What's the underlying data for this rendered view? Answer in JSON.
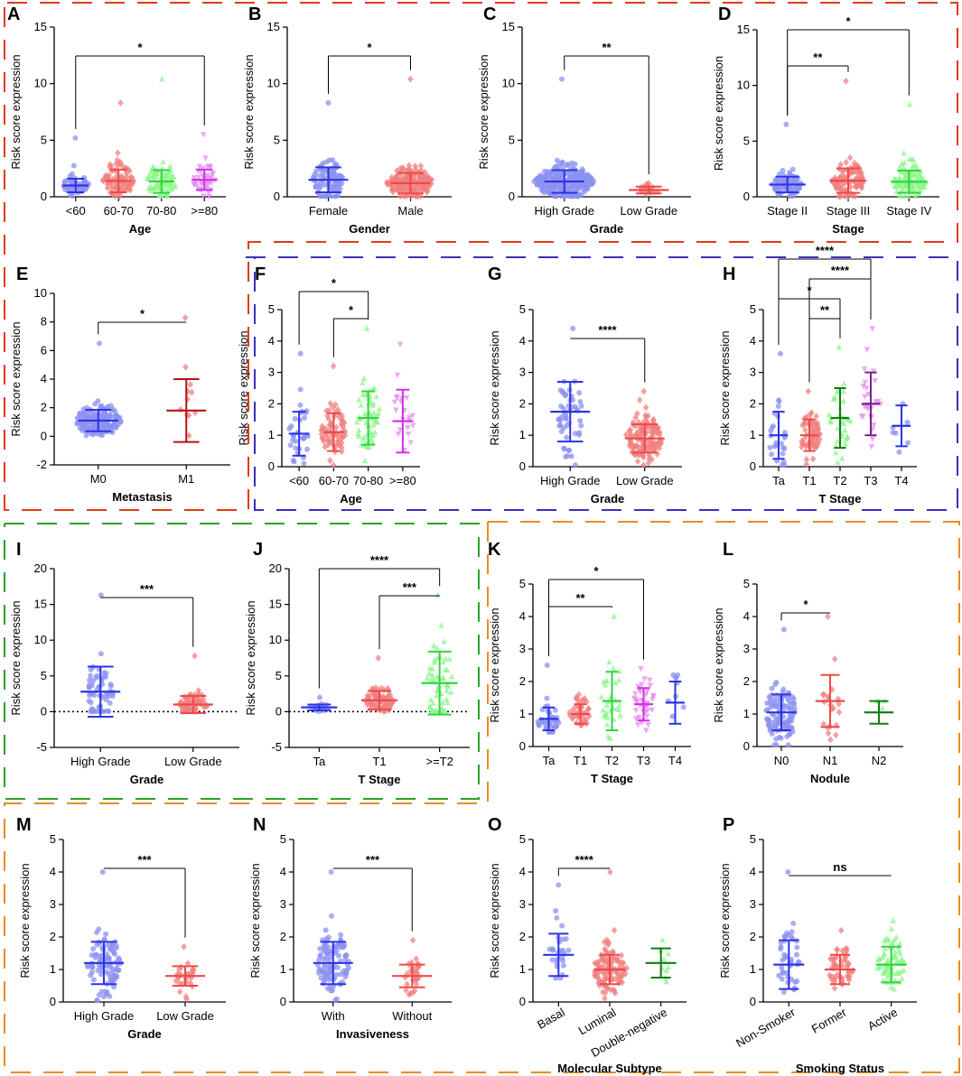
{
  "colors": {
    "blue": "#2b33e6",
    "red": "#f04848",
    "green": "#2fd63a",
    "magenta": "#d12ee6",
    "darkred": "#b51414",
    "darkgreen": "#137a13",
    "purple": "#7a1f8f",
    "lightblue": "#8c91f0",
    "lightred": "#f08080",
    "lightgreen": "#8ef58e",
    "lightmagenta": "#e58cf0",
    "orange": "#ee8a1c",
    "frameRed": "#e03a1e",
    "frameBlue": "#3a2fc0",
    "frameGreen": "#2aa32a"
  },
  "chart_data": [
    {
      "id": "A",
      "type": "scatter",
      "ylabel": "Risk score expression",
      "xlabel": "Age",
      "ylim": [
        0,
        15
      ],
      "yticks": [
        0,
        5,
        10,
        15
      ],
      "categories": [
        "<60",
        "60-70",
        "70-80",
        ">=80"
      ],
      "means": [
        1.0,
        1.4,
        1.35,
        1.5
      ],
      "sd": [
        0.6,
        1.0,
        1.0,
        0.9
      ],
      "maxes": [
        5.2,
        8.3,
        10.4,
        5.5
      ],
      "n": [
        60,
        90,
        90,
        40
      ],
      "series_colors": [
        "blue",
        "red",
        "green",
        "magenta"
      ],
      "markers": [
        "circle",
        "diamond",
        "triangle",
        "triangle-down"
      ],
      "sig": [
        {
          "from": 0,
          "to": 3,
          "label": "*"
        }
      ]
    },
    {
      "id": "B",
      "type": "scatter",
      "ylabel": "Risk score expression",
      "xlabel": "Gender",
      "ylim": [
        0,
        15
      ],
      "yticks": [
        0,
        5,
        10,
        15
      ],
      "categories": [
        "Female",
        "Male"
      ],
      "means": [
        1.5,
        1.2
      ],
      "sd": [
        1.1,
        0.9
      ],
      "maxes": [
        8.3,
        10.4
      ],
      "n": [
        90,
        190
      ],
      "series_colors": [
        "blue",
        "red"
      ],
      "markers": [
        "circle",
        "diamond"
      ],
      "sig": [
        {
          "from": 0,
          "to": 1,
          "label": "*"
        }
      ]
    },
    {
      "id": "C",
      "type": "scatter",
      "ylabel": "Risk score expression",
      "xlabel": "Grade",
      "ylim": [
        0,
        15
      ],
      "yticks": [
        0,
        5,
        10,
        15
      ],
      "categories": [
        "High Grade",
        "Low Grade"
      ],
      "means": [
        1.35,
        0.6
      ],
      "sd": [
        1.0,
        0.3
      ],
      "maxes": [
        10.4,
        1.2
      ],
      "n": [
        260,
        20
      ],
      "series_colors": [
        "blue",
        "red"
      ],
      "markers": [
        "circle",
        "diamond"
      ],
      "sig": [
        {
          "from": 0,
          "to": 1,
          "label": "**"
        }
      ]
    },
    {
      "id": "D",
      "type": "scatter",
      "ylabel": "Risk score expression",
      "xlabel": "Stage",
      "ylim": [
        0,
        15
      ],
      "yticks": [
        0,
        5,
        10,
        15
      ],
      "categories": [
        "Stage II",
        "Stage III",
        "Stage IV"
      ],
      "means": [
        1.1,
        1.45,
        1.35
      ],
      "sd": [
        0.7,
        1.1,
        1.0
      ],
      "maxes": [
        6.5,
        10.4,
        8.3
      ],
      "n": [
        80,
        100,
        110
      ],
      "series_colors": [
        "blue",
        "red",
        "green"
      ],
      "markers": [
        "circle",
        "diamond",
        "triangle"
      ],
      "sig": [
        {
          "from": 0,
          "to": 1,
          "label": "**"
        },
        {
          "from": 0,
          "to": 2,
          "label": "*"
        }
      ]
    },
    {
      "id": "E",
      "type": "scatter",
      "ylabel": "Risk score expression",
      "xlabel": "Metastasis",
      "ylim": [
        -2,
        10
      ],
      "yticks": [
        -2,
        0,
        2,
        4,
        6,
        8,
        10
      ],
      "categories": [
        "M0",
        "M1"
      ],
      "means": [
        1.1,
        1.8
      ],
      "sd": [
        0.75,
        2.2
      ],
      "maxes": [
        6.5,
        8.3
      ],
      "n": [
        180,
        10
      ],
      "series_colors": [
        "blue",
        "darkred"
      ],
      "markers": [
        "circle",
        "diamond"
      ],
      "sig": [
        {
          "from": 0,
          "to": 1,
          "label": "*"
        }
      ]
    },
    {
      "id": "F",
      "type": "scatter",
      "ylabel": "Risk score expression",
      "xlabel": "Age",
      "ylim": [
        0,
        5
      ],
      "yticks": [
        0,
        1,
        2,
        3,
        4,
        5
      ],
      "categories": [
        "<60",
        "60-70",
        "70-80",
        ">=80"
      ],
      "means": [
        1.05,
        1.1,
        1.55,
        1.45
      ],
      "sd": [
        0.7,
        0.6,
        0.85,
        1.0
      ],
      "maxes": [
        3.6,
        3.2,
        4.4,
        3.9
      ],
      "n": [
        30,
        70,
        60,
        20
      ],
      "series_colors": [
        "blue",
        "red",
        "green",
        "magenta"
      ],
      "markers": [
        "circle",
        "diamond",
        "triangle",
        "triangle-down"
      ],
      "sig": [
        {
          "from": 1,
          "to": 2,
          "label": "*"
        },
        {
          "from": 0,
          "to": 2,
          "label": "*"
        }
      ]
    },
    {
      "id": "G",
      "type": "scatter",
      "ylabel": "Risk score expression",
      "xlabel": "Grade",
      "ylim": [
        0,
        5
      ],
      "yticks": [
        0,
        1,
        2,
        3,
        4,
        5
      ],
      "categories": [
        "High Grade",
        "Low Grade"
      ],
      "means": [
        1.75,
        0.9
      ],
      "sd": [
        0.95,
        0.45
      ],
      "maxes": [
        4.4,
        2.4
      ],
      "n": [
        50,
        140
      ],
      "series_colors": [
        "blue",
        "red"
      ],
      "markers": [
        "circle",
        "diamond"
      ],
      "sig": [
        {
          "from": 0,
          "to": 1,
          "label": "****"
        }
      ]
    },
    {
      "id": "H",
      "type": "scatter",
      "ylabel": "Risk score expression",
      "xlabel": "T Stage",
      "ylim": [
        0,
        5
      ],
      "yticks": [
        0,
        1,
        2,
        3,
        4,
        5
      ],
      "categories": [
        "Ta",
        "T1",
        "T2",
        "T3",
        "T4"
      ],
      "means": [
        1.0,
        1.0,
        1.55,
        2.0,
        1.3
      ],
      "sd": [
        0.75,
        0.5,
        0.95,
        1.0,
        0.65
      ],
      "maxes": [
        3.6,
        2.4,
        3.8,
        4.4,
        2.0
      ],
      "n": [
        25,
        70,
        35,
        25,
        6
      ],
      "series_colors": [
        "blue",
        "red",
        "darkgreen",
        "purple",
        "blue"
      ],
      "markers": [
        "circle",
        "diamond",
        "triangle",
        "triangle-down",
        "circle"
      ],
      "sig": [
        {
          "from": 1,
          "to": 2,
          "label": "**"
        },
        {
          "from": 0,
          "to": 2,
          "label": "*"
        },
        {
          "from": 1,
          "to": 3,
          "label": "****"
        },
        {
          "from": 0,
          "to": 3,
          "label": "****"
        }
      ]
    },
    {
      "id": "I",
      "type": "scatter",
      "ylabel": "Risk score expression",
      "xlabel": "Grade",
      "ylim": [
        -5,
        20
      ],
      "yticks": [
        -5,
        0,
        5,
        10,
        15,
        20
      ],
      "categories": [
        "High Grade",
        "Low Grade"
      ],
      "means": [
        2.8,
        1.0
      ],
      "sd": [
        3.5,
        1.2
      ],
      "maxes": [
        16.3,
        7.8
      ],
      "n": [
        60,
        70
      ],
      "series_colors": [
        "blue",
        "red"
      ],
      "markers": [
        "circle",
        "diamond"
      ],
      "zeroline": true,
      "sig": [
        {
          "from": 0,
          "to": 1,
          "label": "***"
        }
      ]
    },
    {
      "id": "J",
      "type": "scatter",
      "ylabel": "Risk score expression",
      "xlabel": "T Stage",
      "ylim": [
        -5,
        20
      ],
      "yticks": [
        -5,
        0,
        5,
        10,
        15,
        20
      ],
      "categories": [
        "Ta",
        "T1",
        ">=T2"
      ],
      "means": [
        0.6,
        1.6,
        4.0
      ],
      "sd": [
        0.4,
        1.3,
        4.4
      ],
      "maxes": [
        2.0,
        7.5,
        16.3
      ],
      "n": [
        20,
        70,
        60
      ],
      "series_colors": [
        "blue",
        "red",
        "green"
      ],
      "markers": [
        "circle",
        "diamond",
        "triangle"
      ],
      "zeroline": true,
      "sig": [
        {
          "from": 1,
          "to": 2,
          "label": "***"
        },
        {
          "from": 0,
          "to": 2,
          "label": "****"
        }
      ]
    },
    {
      "id": "K",
      "type": "scatter",
      "ylabel": "Risk score expression",
      "xlabel": "T Stage",
      "ylim": [
        0,
        5
      ],
      "yticks": [
        0,
        1,
        2,
        3,
        4,
        5
      ],
      "categories": [
        "Ta",
        "T1",
        "T2",
        "T3",
        "T4"
      ],
      "means": [
        0.85,
        1.0,
        1.4,
        1.3,
        1.35
      ],
      "sd": [
        0.35,
        0.3,
        0.9,
        0.5,
        0.65
      ],
      "maxes": [
        2.5,
        1.6,
        4.0,
        2.4,
        2.2
      ],
      "n": [
        40,
        40,
        30,
        40,
        8
      ],
      "series_colors": [
        "blue",
        "red",
        "green",
        "magenta",
        "blue"
      ],
      "markers": [
        "circle",
        "diamond",
        "triangle",
        "triangle-down",
        "circle"
      ],
      "sig": [
        {
          "from": 0,
          "to": 2,
          "label": "**"
        },
        {
          "from": 0,
          "to": 3,
          "label": "*"
        }
      ]
    },
    {
      "id": "L",
      "type": "scatter",
      "ylabel": "Risk score expression",
      "xlabel": "Nodule",
      "ylim": [
        0,
        5
      ],
      "yticks": [
        0,
        1,
        2,
        3,
        4,
        5
      ],
      "categories": [
        "N0",
        "N1",
        "N2"
      ],
      "means": [
        1.05,
        1.4,
        1.05
      ],
      "sd": [
        0.55,
        0.8,
        0.35
      ],
      "maxes": [
        3.6,
        4.0,
        1.4
      ],
      "n": [
        110,
        20,
        3
      ],
      "series_colors": [
        "blue",
        "red",
        "darkgreen"
      ],
      "markers": [
        "circle",
        "diamond",
        "triangle"
      ],
      "sig": [
        {
          "from": 0,
          "to": 1,
          "label": "*"
        }
      ]
    },
    {
      "id": "M",
      "type": "scatter",
      "ylabel": "Risk score expression",
      "xlabel": "Grade",
      "ylim": [
        0,
        5
      ],
      "yticks": [
        0,
        1,
        2,
        3,
        4,
        5
      ],
      "categories": [
        "High Grade",
        "Low Grade"
      ],
      "means": [
        1.2,
        0.8
      ],
      "sd": [
        0.65,
        0.3
      ],
      "maxes": [
        4.0,
        1.7
      ],
      "n": [
        100,
        30
      ],
      "series_colors": [
        "blue",
        "red"
      ],
      "markers": [
        "circle",
        "diamond"
      ],
      "sig": [
        {
          "from": 0,
          "to": 1,
          "label": "***"
        }
      ]
    },
    {
      "id": "N",
      "type": "scatter",
      "ylabel": "Risk score expression",
      "xlabel": "Invasiveness",
      "ylim": [
        0,
        5
      ],
      "yticks": [
        0,
        1,
        2,
        3,
        4,
        5
      ],
      "categories": [
        "With",
        "Without"
      ],
      "means": [
        1.2,
        0.8
      ],
      "sd": [
        0.65,
        0.35
      ],
      "maxes": [
        4.0,
        1.9
      ],
      "n": [
        100,
        30
      ],
      "series_colors": [
        "blue",
        "red"
      ],
      "markers": [
        "circle",
        "diamond"
      ],
      "sig": [
        {
          "from": 0,
          "to": 1,
          "label": "***"
        }
      ]
    },
    {
      "id": "O",
      "type": "scatter",
      "ylabel": "Risk score expression",
      "xlabel": "Molecular Subtype",
      "ylim": [
        0,
        5
      ],
      "yticks": [
        0,
        1,
        2,
        3,
        4,
        5
      ],
      "categories": [
        "Basal",
        "Luminal",
        "Double-negative"
      ],
      "means": [
        1.45,
        1.0,
        1.2
      ],
      "sd": [
        0.65,
        0.45,
        0.45
      ],
      "maxes": [
        3.6,
        4.0,
        1.9
      ],
      "n": [
        25,
        110,
        8
      ],
      "series_colors": [
        "blue",
        "red",
        "darkgreen"
      ],
      "markers": [
        "circle",
        "diamond",
        "triangle"
      ],
      "rotated": true,
      "sig": [
        {
          "from": 0,
          "to": 1,
          "label": "****"
        }
      ]
    },
    {
      "id": "P",
      "type": "scatter",
      "ylabel": "Risk score expression",
      "xlabel": "Smoking Status",
      "ylim": [
        0,
        5
      ],
      "yticks": [
        0,
        1,
        2,
        3,
        4,
        5
      ],
      "categories": [
        "Non-Smoker",
        "Former",
        "Active"
      ],
      "means": [
        1.15,
        1.0,
        1.15
      ],
      "sd": [
        0.75,
        0.45,
        0.55
      ],
      "maxes": [
        4.0,
        2.2,
        2.5
      ],
      "n": [
        40,
        50,
        70
      ],
      "series_colors": [
        "blue",
        "red",
        "green"
      ],
      "markers": [
        "circle",
        "diamond",
        "triangle"
      ],
      "rotated": true,
      "sig": [
        {
          "from": 0,
          "to": 2,
          "label": "ns"
        }
      ]
    }
  ]
}
